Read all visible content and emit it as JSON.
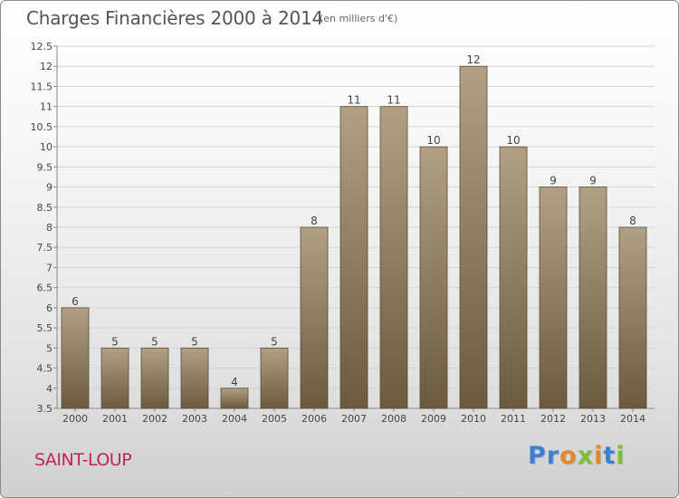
{
  "header": {
    "title": "Charges Financières 2000 à 2014",
    "subtitle": "(en milliers d'€)"
  },
  "footer": {
    "commune": "SAINT-LOUP",
    "logo_text": "Proxiti",
    "logo_letter_colors": [
      "#3d7fd1",
      "#3d7fd1",
      "#e2872a",
      "#7cc03a",
      "#e2872a",
      "#3d7fd1",
      "#7cc03a"
    ]
  },
  "colors": {
    "bar_top": "#b0a084",
    "bar_bottom": "#6b5a3f",
    "bar_stroke": "#5a4b33",
    "grid": "#d4d4d4",
    "axis": "#888888",
    "text": "#444444"
  },
  "chart_data": {
    "type": "bar",
    "title": "Charges Financières 2000 à 2014",
    "subtitle": "(en milliers d'€)",
    "categories": [
      "2000",
      "2001",
      "2002",
      "2003",
      "2004",
      "2005",
      "2006",
      "2007",
      "2008",
      "2009",
      "2010",
      "2011",
      "2012",
      "2013",
      "2014"
    ],
    "values": [
      6,
      5,
      5,
      5,
      4,
      5,
      8,
      11,
      11,
      10,
      12,
      10,
      9,
      9,
      8
    ],
    "ylim": [
      3.5,
      12.5
    ],
    "yticks": [
      "3.5",
      "4",
      "4.5",
      "5",
      "5.5",
      "6",
      "6.5",
      "7",
      "7.5",
      "8",
      "8.5",
      "9",
      "9.5",
      "10",
      "10.5",
      "11",
      "11.5",
      "12",
      "12.5"
    ],
    "xlabel": "",
    "ylabel": "",
    "grid": true
  }
}
